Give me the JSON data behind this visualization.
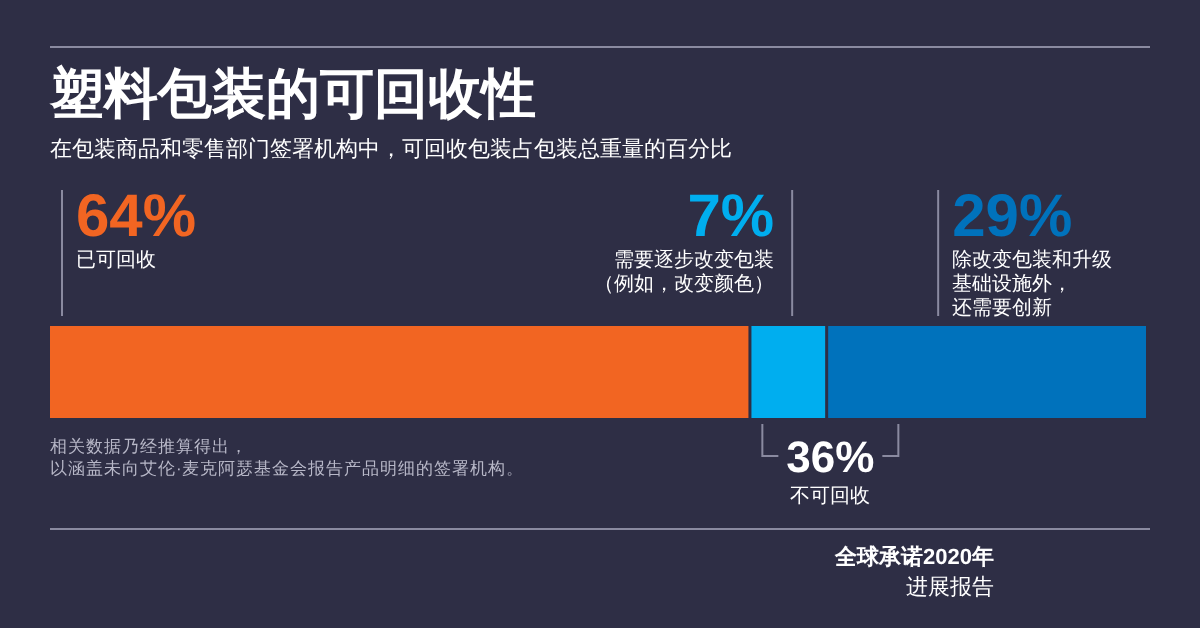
{
  "chart_data": {
    "type": "bar",
    "orientation": "horizontal",
    "stacked": true,
    "title": "塑料包装的可回收性",
    "subtitle": "在包装商品和零售部门签署机构中，可回收包装占包装总重量的百分比",
    "categories": [
      null
    ],
    "xlim": [
      0,
      100
    ],
    "series": [
      {
        "name": "已可回收",
        "color": "#f26522",
        "values": [
          64
        ],
        "value_labels": [
          "64%"
        ]
      },
      {
        "name": "需要逐步改变包装（例如，改变颜色）",
        "color": "#00aeef",
        "values": [
          7
        ],
        "value_labels": [
          "7%"
        ]
      },
      {
        "name": "除改变包装和升级基础设施外，还需要创新",
        "color": "#0072bc",
        "values": [
          29
        ],
        "value_labels": [
          "29%"
        ]
      }
    ],
    "annotations": [
      "36%",
      "不可回收",
      "相关数据乃经推算得出，以涵盖未向艾伦·麦克阿瑟基金会报告产品明细的签署机构。",
      "全球承诺2020年",
      "进展报告"
    ]
  }
}
